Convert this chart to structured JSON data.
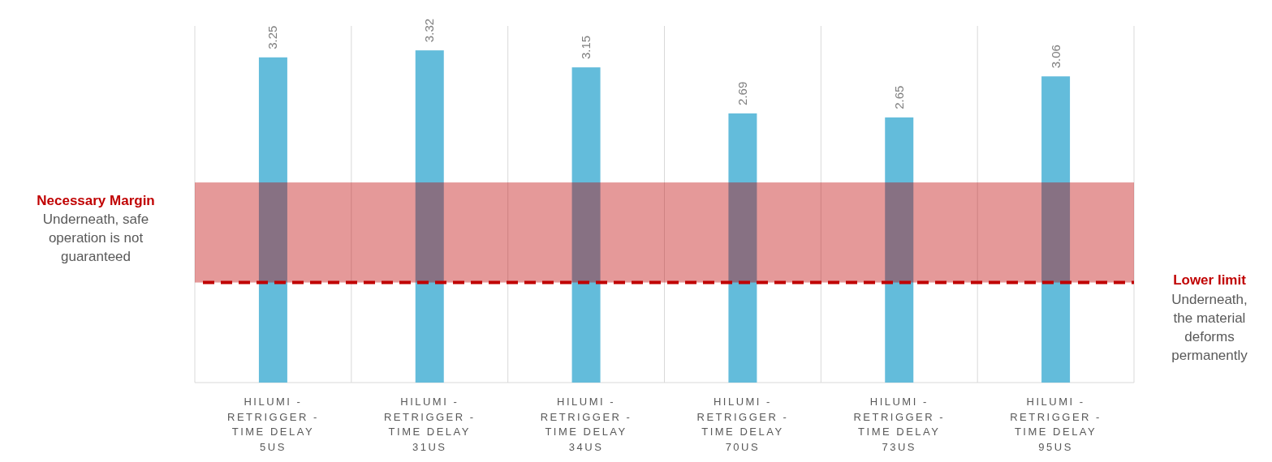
{
  "chart_data": {
    "type": "bar",
    "categories": [
      "HILUMI - RETRIGGER - TIME DELAY 5US",
      "HILUMI - RETRIGGER - TIME DELAY 31US",
      "HILUMI - RETRIGGER - TIME DELAY 34US",
      "HILUMI - RETRIGGER - TIME DELAY 70US",
      "HILUMI - RETRIGGER - TIME DELAY 73US",
      "HILUMI - RETRIGGER - TIME DELAY 95US"
    ],
    "values": [
      3.25,
      3.32,
      3.15,
      2.69,
      2.65,
      3.06
    ],
    "color": "#63bcdb",
    "tick_labels": "x",
    "data_labels": true,
    "grid": "x",
    "bands": [
      {
        "axis": "y",
        "from": 1,
        "to": 2,
        "label": "Necessary Margin",
        "color": "#be0000"
      }
    ],
    "ref_lines": [
      {
        "axis": "y",
        "value": 1,
        "label": "Lower limit",
        "color": "#c00000",
        "line_style": "dashed"
      }
    ],
    "annotations": [
      "Underneath, safe operation is not guaranteed",
      "Underneath, the material deforms permanently"
    ]
  }
}
